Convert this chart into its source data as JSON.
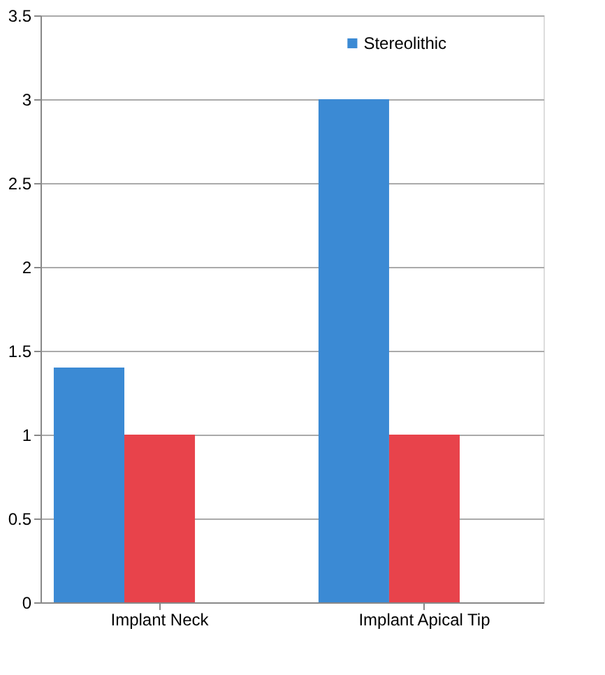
{
  "chart_data": {
    "type": "bar",
    "categories": [
      "Implant Neck",
      "Implant Apical Tip"
    ],
    "series": [
      {
        "name": "Stereolithic",
        "color": "#3b8ad4",
        "values": [
          1.4,
          3.0
        ]
      },
      {
        "color": "#e8434b",
        "values": [
          1.0,
          1.0
        ]
      }
    ],
    "ylim": [
      0,
      3.5
    ],
    "yticks": [
      0,
      0.5,
      1,
      1.5,
      2,
      2.5,
      3,
      3.5
    ],
    "grid": "y",
    "legend": "top right"
  }
}
